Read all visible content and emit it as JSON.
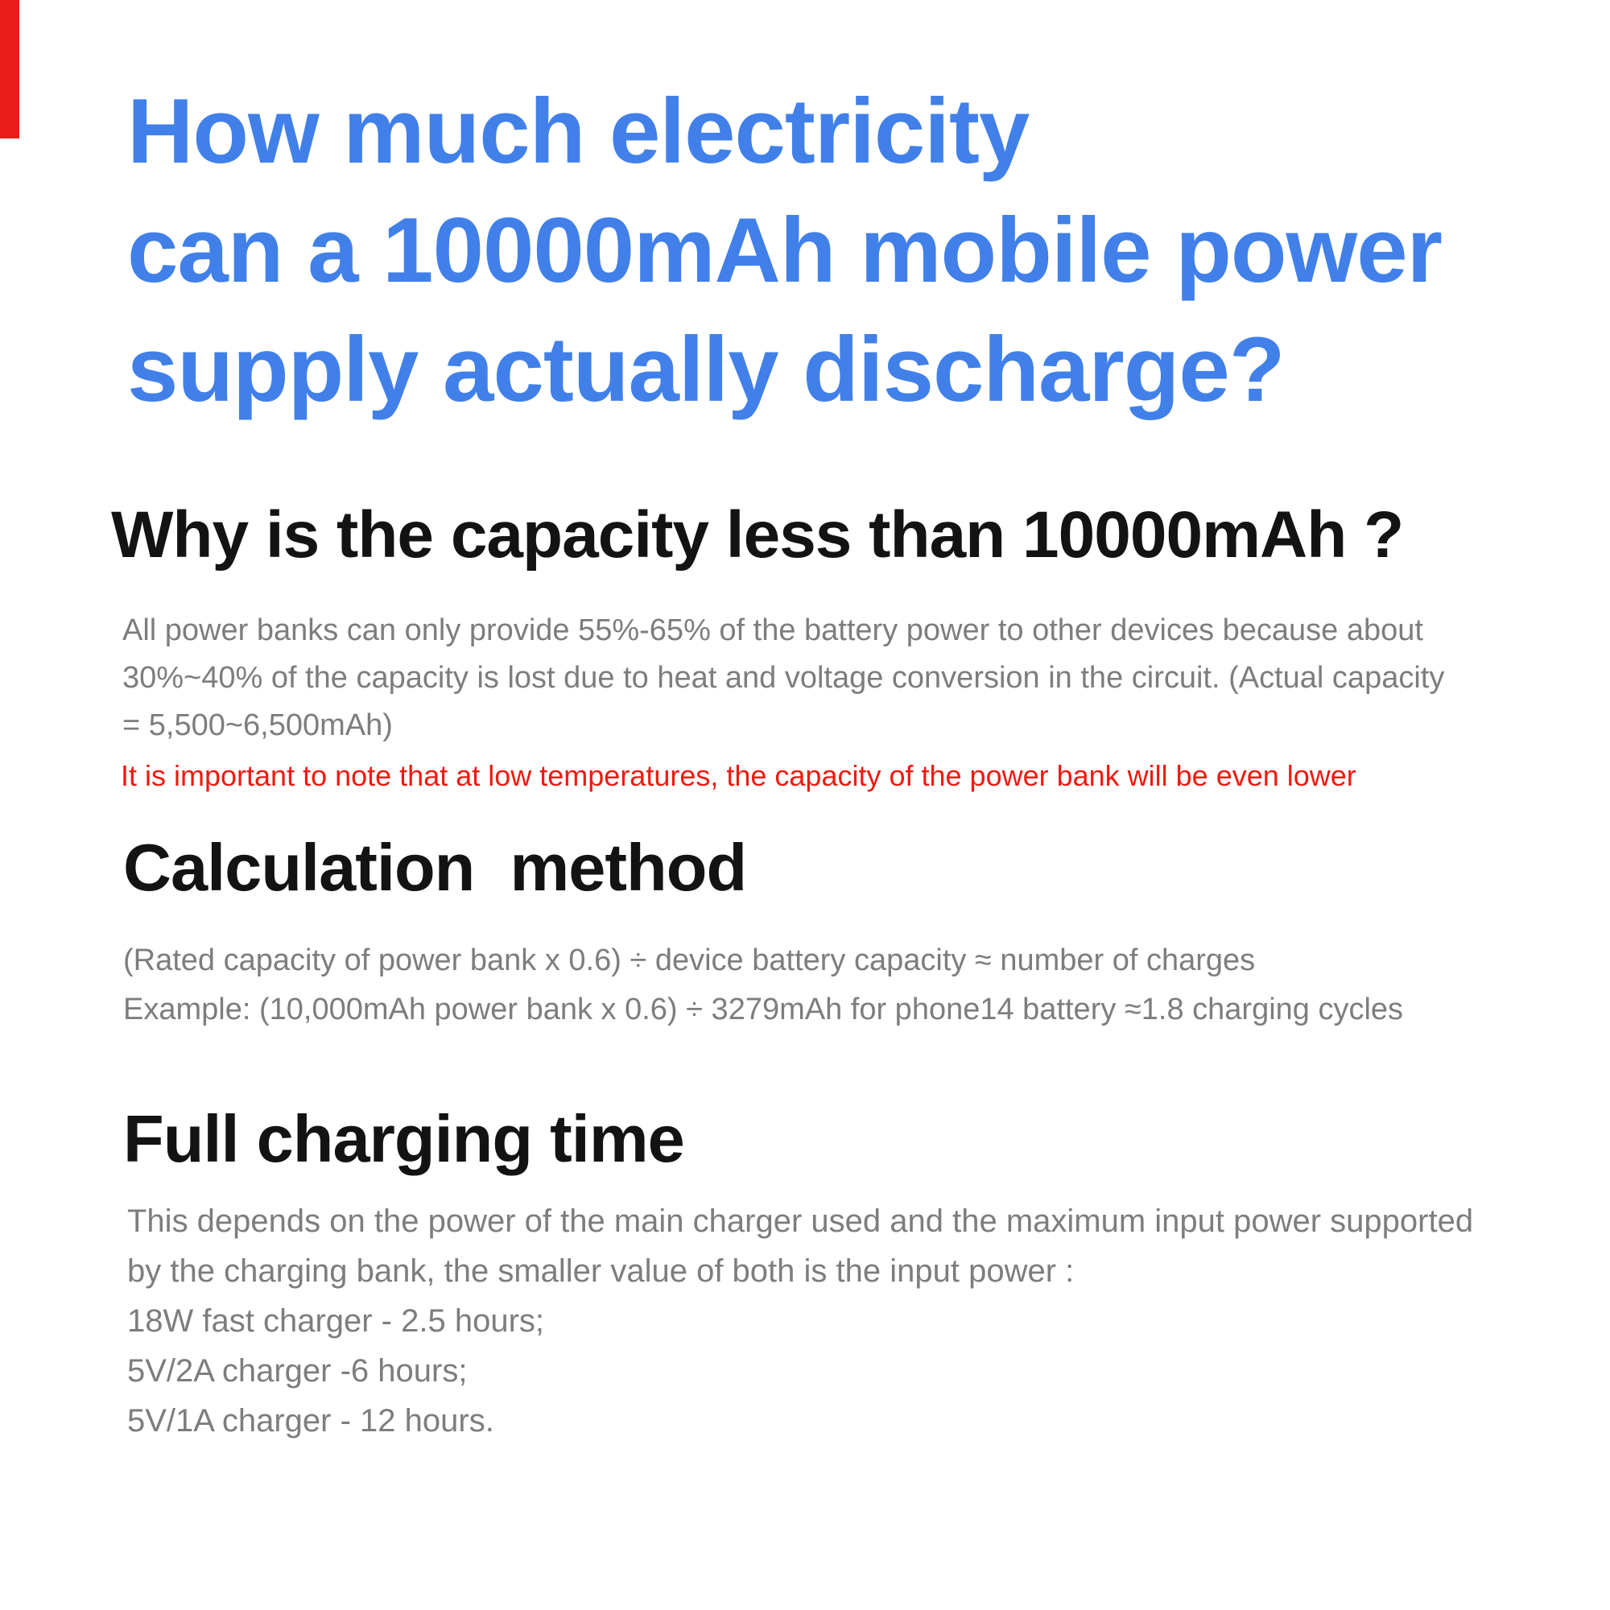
{
  "page": {
    "background": "#ffffff",
    "colors": {
      "title_blue": "#4180e9",
      "heading_black": "#131313",
      "body_gray": "#7d7d7d",
      "note_red": "#ee1a10",
      "red_bar": "#ea1b1b"
    }
  },
  "title": {
    "line1": "How much electricity",
    "line2": "can a 10000mAh mobile power",
    "line3": "supply actually discharge?"
  },
  "capacity_section": {
    "heading": "Why is the capacity less than 10000mAh ?",
    "body_line1": "All power banks can only provide 55%-65% of the battery power to other devices because about",
    "body_line2": "30%~40% of the capacity is lost due to heat and voltage conversion in the circuit. (Actual capacity",
    "body_line3": "= 5,500~6,500mAh)",
    "note": "It is important to note that at low temperatures, the capacity of the power bank will be even lower"
  },
  "calculation_section": {
    "heading": "Calculation  method",
    "formula": "(Rated capacity of power bank x 0.6) ÷ device battery capacity ≈ number of charges",
    "example": "Example: (10,000mAh power bank x 0.6) ÷ 3279mAh for phone14 battery ≈1.8 charging cycles"
  },
  "charging_section": {
    "heading": "Full charging time",
    "body_line1": "This depends on the power of the main charger used and the maximum input power supported",
    "body_line2": "by the charging bank, the smaller value of both is the input power :",
    "item_18w": "18W fast charger - 2.5 hours;",
    "item_5v2a": "5V/2A charger -6 hours;",
    "item_5v1a": "5V/1A charger - 12 hours."
  }
}
